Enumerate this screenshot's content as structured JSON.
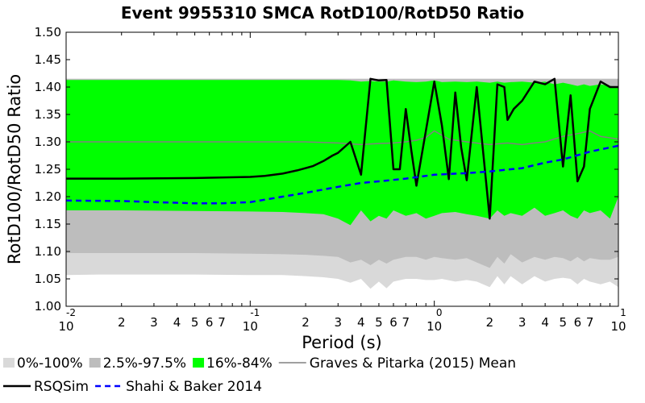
{
  "chart_data": {
    "type": "line",
    "title": "Event 9955310 SMCA RotD100/RotD50 Ratio",
    "xlabel": "Period (s)",
    "ylabel": "RotD100/RotD50 Ratio",
    "x_scale": "log",
    "xlim": [
      0.01,
      10
    ],
    "ylim": [
      1.0,
      1.5
    ],
    "grid": false,
    "legend_position": "bottom",
    "y_ticks": [
      "1.00",
      "1.05",
      "1.10",
      "1.15",
      "1.20",
      "1.25",
      "1.30",
      "1.35",
      "1.40",
      "1.45",
      "1.50"
    ],
    "x_major_ticks": [
      {
        "value": 0.01,
        "base": "10",
        "exp": "-2"
      },
      {
        "value": 0.1,
        "base": "10",
        "exp": "-1"
      },
      {
        "value": 1,
        "base": "10",
        "exp": "0"
      },
      {
        "value": 10,
        "base": "10",
        "exp": "1"
      }
    ],
    "x_minor_labels": [
      "2",
      "3",
      "4",
      "5",
      "6",
      "7"
    ],
    "bands": [
      {
        "name": "0%-100%",
        "color": "#d9d9d9",
        "x": [
          0.01,
          0.015,
          0.02,
          0.05,
          0.1,
          0.15,
          0.2,
          0.25,
          0.3,
          0.35,
          0.4,
          0.45,
          0.5,
          0.55,
          0.6,
          0.7,
          0.8,
          0.9,
          1.0,
          1.1,
          1.3,
          1.5,
          1.7,
          2.0,
          2.2,
          2.4,
          2.6,
          3.0,
          3.5,
          4.0,
          4.5,
          5.0,
          5.5,
          6.0,
          6.5,
          7.0,
          8.0,
          9.0,
          10.0
        ],
        "upper": [
          1.415,
          1.415,
          1.415,
          1.415,
          1.415,
          1.415,
          1.415,
          1.415,
          1.415,
          1.415,
          1.415,
          1.415,
          1.415,
          1.415,
          1.415,
          1.415,
          1.415,
          1.415,
          1.415,
          1.415,
          1.415,
          1.415,
          1.415,
          1.415,
          1.415,
          1.415,
          1.415,
          1.415,
          1.415,
          1.415,
          1.415,
          1.415,
          1.415,
          1.415,
          1.415,
          1.415,
          1.415,
          1.415,
          1.415
        ],
        "lower": [
          1.057,
          1.058,
          1.058,
          1.058,
          1.057,
          1.057,
          1.055,
          1.053,
          1.05,
          1.043,
          1.05,
          1.032,
          1.045,
          1.033,
          1.045,
          1.05,
          1.05,
          1.048,
          1.048,
          1.05,
          1.045,
          1.048,
          1.045,
          1.035,
          1.055,
          1.04,
          1.055,
          1.04,
          1.055,
          1.045,
          1.05,
          1.052,
          1.05,
          1.04,
          1.05,
          1.045,
          1.04,
          1.045,
          1.035
        ]
      },
      {
        "name": "2.5%-97.5%",
        "color": "#bdbdbd",
        "x": [
          0.01,
          0.015,
          0.02,
          0.05,
          0.1,
          0.15,
          0.2,
          0.25,
          0.3,
          0.35,
          0.4,
          0.45,
          0.5,
          0.55,
          0.6,
          0.7,
          0.8,
          0.9,
          1.0,
          1.1,
          1.3,
          1.5,
          1.7,
          2.0,
          2.2,
          2.4,
          2.6,
          3.0,
          3.5,
          4.0,
          4.5,
          5.0,
          5.5,
          6.0,
          6.5,
          7.0,
          8.0,
          9.0,
          10.0
        ],
        "upper": [
          1.415,
          1.415,
          1.415,
          1.415,
          1.415,
          1.415,
          1.415,
          1.415,
          1.415,
          1.415,
          1.415,
          1.415,
          1.415,
          1.415,
          1.415,
          1.415,
          1.415,
          1.415,
          1.415,
          1.415,
          1.415,
          1.415,
          1.415,
          1.415,
          1.415,
          1.415,
          1.415,
          1.415,
          1.415,
          1.415,
          1.415,
          1.415,
          1.415,
          1.415,
          1.415,
          1.415,
          1.415,
          1.415,
          1.415
        ],
        "lower": [
          1.097,
          1.097,
          1.097,
          1.097,
          1.096,
          1.095,
          1.094,
          1.092,
          1.09,
          1.08,
          1.085,
          1.075,
          1.085,
          1.078,
          1.085,
          1.09,
          1.09,
          1.085,
          1.09,
          1.088,
          1.085,
          1.088,
          1.08,
          1.07,
          1.09,
          1.078,
          1.095,
          1.08,
          1.09,
          1.085,
          1.09,
          1.088,
          1.082,
          1.09,
          1.082,
          1.088,
          1.085,
          1.085,
          1.09
        ]
      },
      {
        "name": "16%-84%",
        "color": "#00ff00",
        "x": [
          0.01,
          0.015,
          0.02,
          0.05,
          0.1,
          0.15,
          0.2,
          0.25,
          0.3,
          0.35,
          0.4,
          0.45,
          0.5,
          0.55,
          0.6,
          0.7,
          0.8,
          0.9,
          1.0,
          1.1,
          1.3,
          1.5,
          1.7,
          2.0,
          2.2,
          2.4,
          2.6,
          3.0,
          3.5,
          4.0,
          4.5,
          5.0,
          5.5,
          6.0,
          6.5,
          7.0,
          8.0,
          9.0,
          10.0
        ],
        "upper": [
          1.413,
          1.413,
          1.413,
          1.413,
          1.413,
          1.413,
          1.413,
          1.413,
          1.413,
          1.412,
          1.41,
          1.411,
          1.41,
          1.41,
          1.412,
          1.41,
          1.409,
          1.41,
          1.412,
          1.409,
          1.41,
          1.409,
          1.41,
          1.408,
          1.41,
          1.408,
          1.409,
          1.41,
          1.408,
          1.41,
          1.405,
          1.408,
          1.405,
          1.402,
          1.405,
          1.402,
          1.405,
          1.402,
          1.4
        ],
        "lower": [
          1.175,
          1.175,
          1.175,
          1.174,
          1.173,
          1.172,
          1.17,
          1.168,
          1.16,
          1.148,
          1.175,
          1.155,
          1.165,
          1.16,
          1.175,
          1.165,
          1.17,
          1.16,
          1.165,
          1.17,
          1.172,
          1.168,
          1.165,
          1.16,
          1.175,
          1.165,
          1.17,
          1.165,
          1.18,
          1.165,
          1.17,
          1.175,
          1.165,
          1.16,
          1.175,
          1.17,
          1.175,
          1.16,
          1.2
        ]
      }
    ],
    "series": [
      {
        "name": "Graves & Pitarka (2015) Mean",
        "color": "#808080",
        "style": "solid",
        "x": [
          0.01,
          0.02,
          0.05,
          0.1,
          0.2,
          0.3,
          0.4,
          0.5,
          0.6,
          0.7,
          0.8,
          0.9,
          1.0,
          1.2,
          1.5,
          2.0,
          2.5,
          3.0,
          3.5,
          4.0,
          5.0,
          6.0,
          7.0,
          8.0,
          10.0
        ],
        "y": [
          1.3,
          1.3,
          1.3,
          1.3,
          1.3,
          1.298,
          1.295,
          1.297,
          1.298,
          1.3,
          1.303,
          1.308,
          1.32,
          1.305,
          1.3,
          1.295,
          1.298,
          1.295,
          1.298,
          1.3,
          1.31,
          1.315,
          1.32,
          1.31,
          1.305
        ]
      },
      {
        "name": "RSQSim",
        "color": "#000000",
        "style": "solid",
        "x": [
          0.01,
          0.02,
          0.05,
          0.1,
          0.12,
          0.15,
          0.18,
          0.2,
          0.22,
          0.25,
          0.28,
          0.3,
          0.35,
          0.4,
          0.45,
          0.5,
          0.55,
          0.6,
          0.65,
          0.7,
          0.75,
          0.8,
          0.9,
          1.0,
          1.1,
          1.2,
          1.3,
          1.4,
          1.5,
          1.7,
          2.0,
          2.2,
          2.4,
          2.5,
          2.7,
          3.0,
          3.5,
          4.0,
          4.5,
          5.0,
          5.5,
          6.0,
          6.5,
          7.0,
          8.0,
          9.0,
          10.0
        ],
        "y": [
          1.233,
          1.233,
          1.234,
          1.236,
          1.238,
          1.242,
          1.248,
          1.252,
          1.256,
          1.265,
          1.275,
          1.28,
          1.3,
          1.24,
          1.415,
          1.412,
          1.413,
          1.25,
          1.25,
          1.36,
          1.285,
          1.22,
          1.32,
          1.41,
          1.33,
          1.232,
          1.39,
          1.29,
          1.23,
          1.4,
          1.16,
          1.405,
          1.4,
          1.34,
          1.36,
          1.375,
          1.41,
          1.405,
          1.415,
          1.255,
          1.385,
          1.228,
          1.255,
          1.36,
          1.41,
          1.4,
          1.4
        ]
      },
      {
        "name": "Shahi & Baker 2014",
        "color": "#0000ff",
        "style": "dashed",
        "x": [
          0.01,
          0.02,
          0.03,
          0.05,
          0.07,
          0.1,
          0.15,
          0.2,
          0.3,
          0.4,
          0.5,
          0.7,
          1.0,
          1.5,
          2.0,
          3.0,
          4.0,
          5.0,
          7.0,
          10.0
        ],
        "y": [
          1.193,
          1.192,
          1.19,
          1.188,
          1.188,
          1.19,
          1.2,
          1.207,
          1.218,
          1.225,
          1.228,
          1.233,
          1.24,
          1.243,
          1.246,
          1.252,
          1.262,
          1.268,
          1.282,
          1.293
        ]
      }
    ]
  },
  "legend": {
    "items": [
      {
        "label": "0%-100%",
        "kind": "patch",
        "color": "#d9d9d9"
      },
      {
        "label": "2.5%-97.5%",
        "kind": "patch",
        "color": "#bdbdbd"
      },
      {
        "label": "16%-84%",
        "kind": "patch",
        "color": "#00ff00"
      },
      {
        "label": "Graves & Pitarka (2015) Mean",
        "kind": "line",
        "color": "#808080"
      },
      {
        "label": "RSQSim",
        "kind": "line",
        "color": "#000000"
      },
      {
        "label": "Shahi & Baker 2014",
        "kind": "dashed",
        "color": "#0000ff"
      }
    ]
  }
}
